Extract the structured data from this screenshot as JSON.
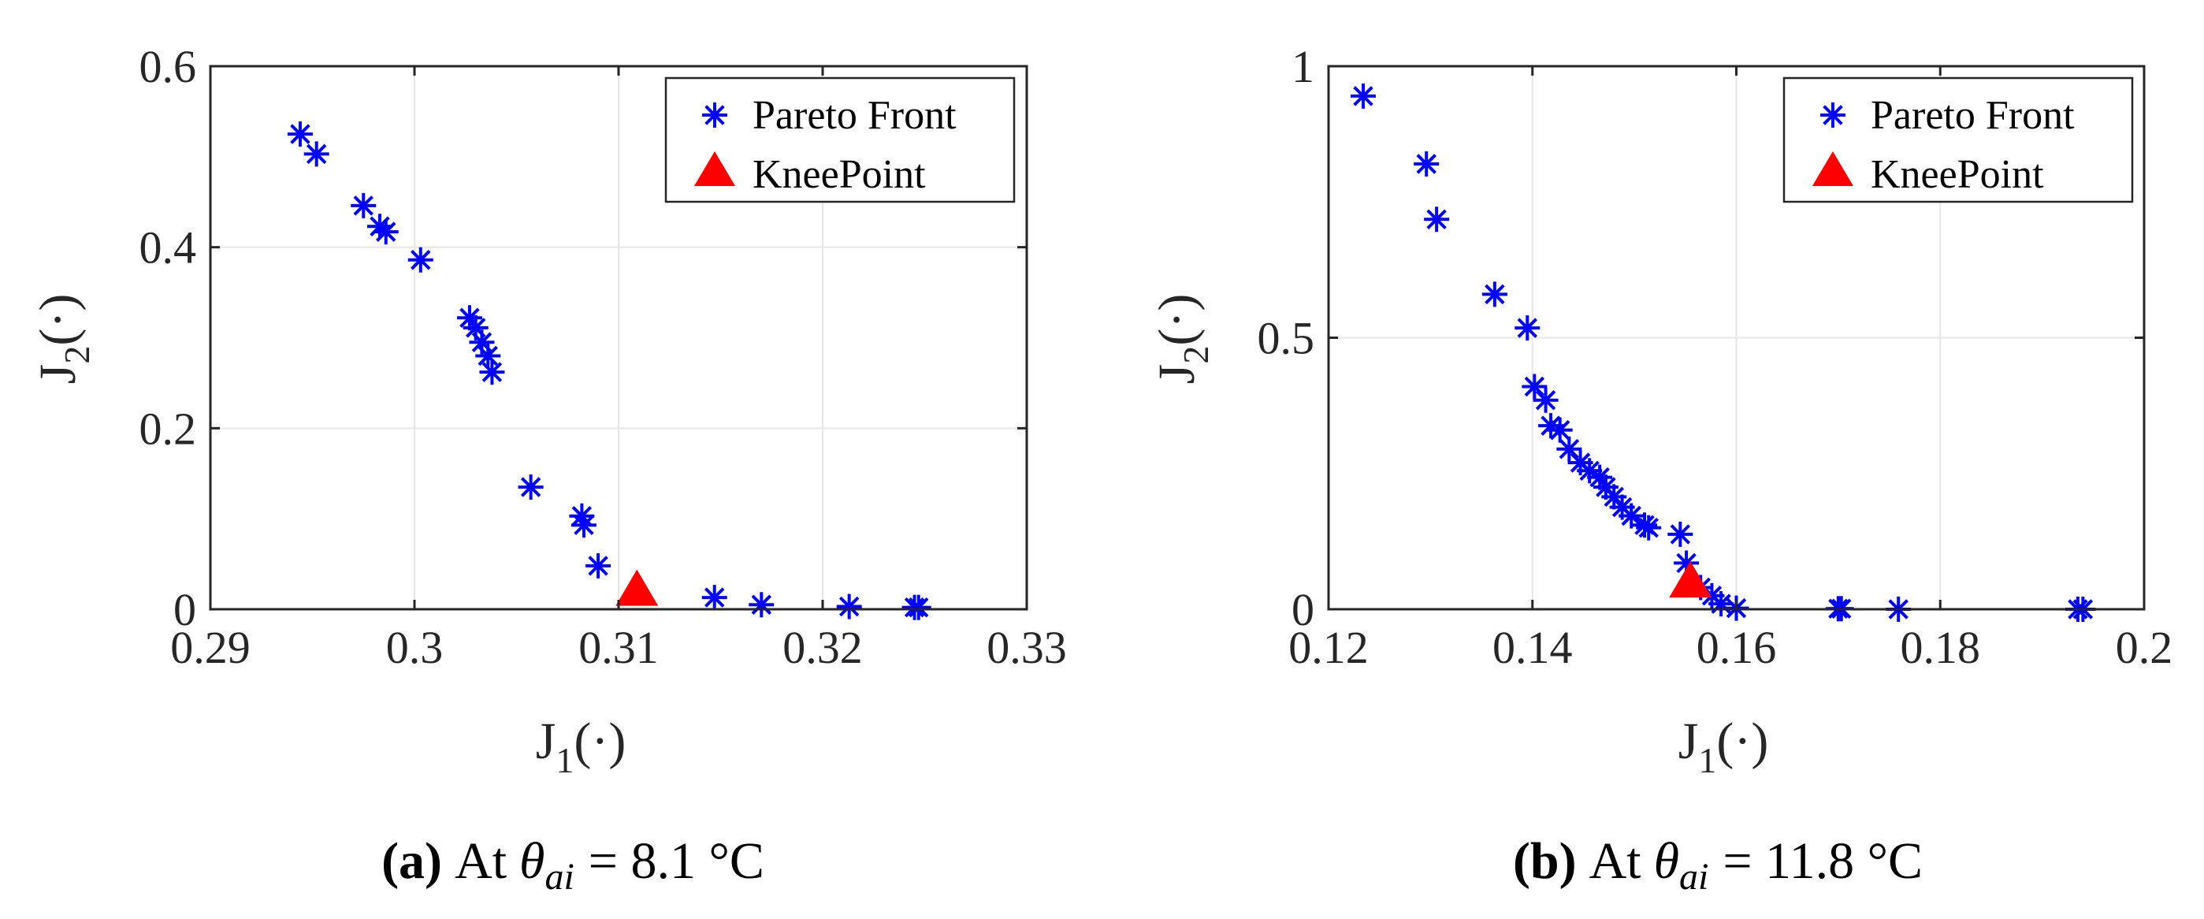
{
  "colors": {
    "pareto": "#0000ff",
    "knee": "#ff0000",
    "grid": "#e6e6e6",
    "axis": "#262626"
  },
  "chart_data": [
    {
      "type": "scatter",
      "xlabel_main": "J",
      "xlabel_sub": "1",
      "xlabel_rest": "(·)",
      "ylabel_main": "J",
      "ylabel_sub": "2",
      "ylabel_rest": "(·)",
      "xlim": [
        0.29,
        0.33
      ],
      "ylim": [
        0,
        0.6
      ],
      "xticks": [
        0.29,
        0.3,
        0.31,
        0.32,
        0.33
      ],
      "xtick_labels": [
        "0.29",
        "0.3",
        "0.31",
        "0.32",
        "0.33"
      ],
      "yticks": [
        0,
        0.2,
        0.4,
        0.6
      ],
      "ytick_labels": [
        "0",
        "0.2",
        "0.4",
        "0.6"
      ],
      "legend": {
        "position": "top-right",
        "entries": [
          "Pareto Front",
          "KneePoint"
        ]
      },
      "series": [
        {
          "name": "Pareto Front",
          "marker": "asterisk",
          "x": [
            0.2944,
            0.2952,
            0.2975,
            0.2983,
            0.2986,
            0.3003,
            0.3027,
            0.303,
            0.3033,
            0.3036,
            0.3038,
            0.3057,
            0.3082,
            0.3083,
            0.309,
            0.3147,
            0.317,
            0.3213,
            0.3245,
            0.3247
          ],
          "y": [
            0.525,
            0.503,
            0.446,
            0.423,
            0.417,
            0.386,
            0.322,
            0.311,
            0.295,
            0.28,
            0.262,
            0.135,
            0.103,
            0.093,
            0.048,
            0.013,
            0.005,
            0.003,
            0.002,
            0.002
          ]
        },
        {
          "name": "KneePoint",
          "marker": "triangle",
          "x": [
            0.3109
          ],
          "y": [
            0.019
          ]
        }
      ],
      "caption": {
        "label": "(a)",
        "prefix": "At",
        "theta": "θ",
        "sub": "ai",
        "value": "= 8.1 °C"
      }
    },
    {
      "type": "scatter",
      "xlabel_main": "J",
      "xlabel_sub": "1",
      "xlabel_rest": "(·)",
      "ylabel_main": "J",
      "ylabel_sub": "2",
      "ylabel_rest": "(·)",
      "xlim": [
        0.12,
        0.2
      ],
      "ylim": [
        0,
        1
      ],
      "xticks": [
        0.12,
        0.14,
        0.16,
        0.18,
        0.2
      ],
      "xtick_labels": [
        "0.12",
        "0.14",
        "0.16",
        "0.18",
        "0.2"
      ],
      "yticks": [
        0,
        0.5,
        1
      ],
      "ytick_labels": [
        "0",
        "0.5",
        "1"
      ],
      "legend": {
        "position": "top-right",
        "entries": [
          "Pareto Front",
          "KneePoint"
        ]
      },
      "series": [
        {
          "name": "Pareto Front",
          "marker": "asterisk",
          "x": [
            0.1234,
            0.1296,
            0.1306,
            0.1363,
            0.1395,
            0.1402,
            0.1413,
            0.1418,
            0.1427,
            0.1436,
            0.1447,
            0.1456,
            0.1466,
            0.1472,
            0.148,
            0.1488,
            0.1497,
            0.151,
            0.1514,
            0.1545,
            0.1551,
            0.1565,
            0.1576,
            0.1585,
            0.16,
            0.17,
            0.1703,
            0.1759,
            0.1935,
            0.194
          ],
          "y": [
            0.945,
            0.82,
            0.718,
            0.58,
            0.518,
            0.41,
            0.385,
            0.338,
            0.33,
            0.295,
            0.27,
            0.255,
            0.243,
            0.225,
            0.207,
            0.188,
            0.172,
            0.155,
            0.15,
            0.138,
            0.085,
            0.04,
            0.025,
            0.01,
            0.002,
            0.001,
            0.001,
            0.0,
            0.0,
            0.0
          ]
        },
        {
          "name": "KneePoint",
          "marker": "triangle",
          "x": [
            0.1555
          ],
          "y": [
            0.047
          ]
        }
      ],
      "caption": {
        "label": "(b)",
        "prefix": "At",
        "theta": "θ",
        "sub": "ai",
        "value": "= 11.8 °C"
      }
    }
  ]
}
